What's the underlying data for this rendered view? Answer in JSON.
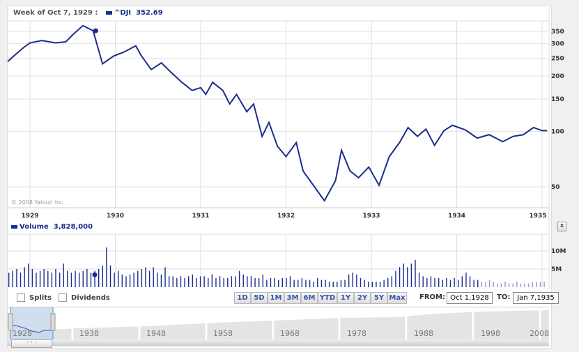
{
  "header": {
    "week_label": "Week of Oct 7, 1929 :",
    "symbol": "^DJI",
    "value": "352.69"
  },
  "watermark": "© 2008 Yahoo! Inc.",
  "volume": {
    "label": "Volume",
    "value": "3,828,000",
    "close": "x"
  },
  "checkboxes": [
    {
      "label": "Splits",
      "checked": false
    },
    {
      "label": "Dividends",
      "checked": false
    }
  ],
  "ranges": [
    "1D",
    "5D",
    "1M",
    "3M",
    "6M",
    "YTD",
    "1Y",
    "2Y",
    "5Y",
    "Max"
  ],
  "from_label": "FROM:",
  "from_value": "Oct 1,1928",
  "to_label": "TO:",
  "to_value": "Jan 7,1935",
  "navigator_years": [
    "1928",
    "1938",
    "1948",
    "1958",
    "1968",
    "1978",
    "1988",
    "1998",
    "2008"
  ],
  "chart_data": [
    {
      "type": "line",
      "title": "^DJI",
      "x_ticks": [
        "1929",
        "1930",
        "1931",
        "1932",
        "1933",
        "1934",
        "1935"
      ],
      "y_ticks": [
        50,
        100,
        150,
        200,
        250,
        300,
        350
      ],
      "y_scale": "log",
      "ylim": [
        45,
        400
      ],
      "color": "#1a2c8c",
      "t": [
        1928.74,
        1928.81,
        1928.93,
        1929.0,
        1929.14,
        1929.3,
        1929.42,
        1929.5,
        1929.62,
        1929.74,
        1929.85,
        1929.98,
        1930.1,
        1930.24,
        1930.3,
        1930.42,
        1930.54,
        1930.66,
        1930.78,
        1930.9,
        1931.0,
        1931.06,
        1931.14,
        1931.26,
        1931.34,
        1931.42,
        1931.54,
        1931.62,
        1931.72,
        1931.8,
        1931.9,
        1932.0,
        1932.12,
        1932.2,
        1932.32,
        1932.45,
        1932.58,
        1932.65,
        1932.75,
        1932.85,
        1932.97,
        1933.09,
        1933.21,
        1933.33,
        1933.43,
        1933.54,
        1933.64,
        1933.74,
        1933.85,
        1933.95,
        1934.1,
        1934.24,
        1934.38,
        1934.54,
        1934.66,
        1934.78,
        1934.9,
        1935.0,
        1935.06
      ],
      "values": [
        240,
        257,
        287,
        303,
        312,
        303,
        307,
        335,
        376,
        353,
        233,
        257,
        270,
        292,
        260,
        217,
        236,
        208,
        185,
        167,
        173,
        159,
        185,
        167,
        141,
        159,
        128,
        141,
        94,
        112,
        83,
        73,
        87,
        61,
        51,
        42,
        54,
        79,
        61,
        56,
        64,
        51,
        73,
        87,
        105,
        94,
        103,
        84,
        101,
        108,
        102,
        92,
        96,
        88,
        94,
        96,
        105,
        101,
        101
      ],
      "marker": {
        "t": 1929.77,
        "value": 352.69
      }
    },
    {
      "type": "bar",
      "title": "Volume",
      "y_ticks": [
        "5M",
        "10M"
      ],
      "unit": "M",
      "color": "#1a2c8c",
      "values": [
        4,
        4.5,
        5,
        4,
        5.5,
        6.5,
        5,
        4,
        4.5,
        5,
        4.5,
        4,
        5,
        4,
        6.5,
        4.5,
        4,
        4.5,
        4,
        4.5,
        5,
        4,
        4.5,
        5,
        6,
        11,
        6,
        4,
        4.5,
        3.5,
        3,
        3.5,
        4,
        4.5,
        5,
        5.5,
        4.5,
        5.5,
        4,
        3.5,
        5.5,
        3,
        3,
        2.5,
        3,
        2.5,
        3,
        3.5,
        2.5,
        3,
        3,
        2.5,
        3.5,
        2.5,
        3,
        2.5,
        2.5,
        3,
        3,
        4.5,
        3.5,
        3,
        3,
        2.5,
        2.5,
        3.5,
        2,
        2.5,
        2.5,
        2,
        2.5,
        2.5,
        3,
        2,
        2,
        2.5,
        2,
        2,
        1.5,
        2.5,
        2,
        2,
        1.5,
        1.5,
        1.5,
        2,
        2,
        3.5,
        4,
        3.5,
        2.5,
        2,
        1.5,
        1.5,
        1.5,
        1.5,
        2,
        2.5,
        3,
        4.5,
        5.5,
        6.5,
        5.5,
        6.5,
        7.5,
        4,
        3,
        2.5,
        3,
        2.5,
        2.5,
        2,
        2.5,
        2,
        2.5,
        2,
        3,
        4,
        3,
        2,
        2,
        1.5,
        1.5,
        2,
        1.5,
        1,
        1,
        1.5,
        1,
        1,
        1.5,
        1,
        1,
        1,
        1.5,
        1.5,
        1.5,
        1.5
      ]
    }
  ]
}
